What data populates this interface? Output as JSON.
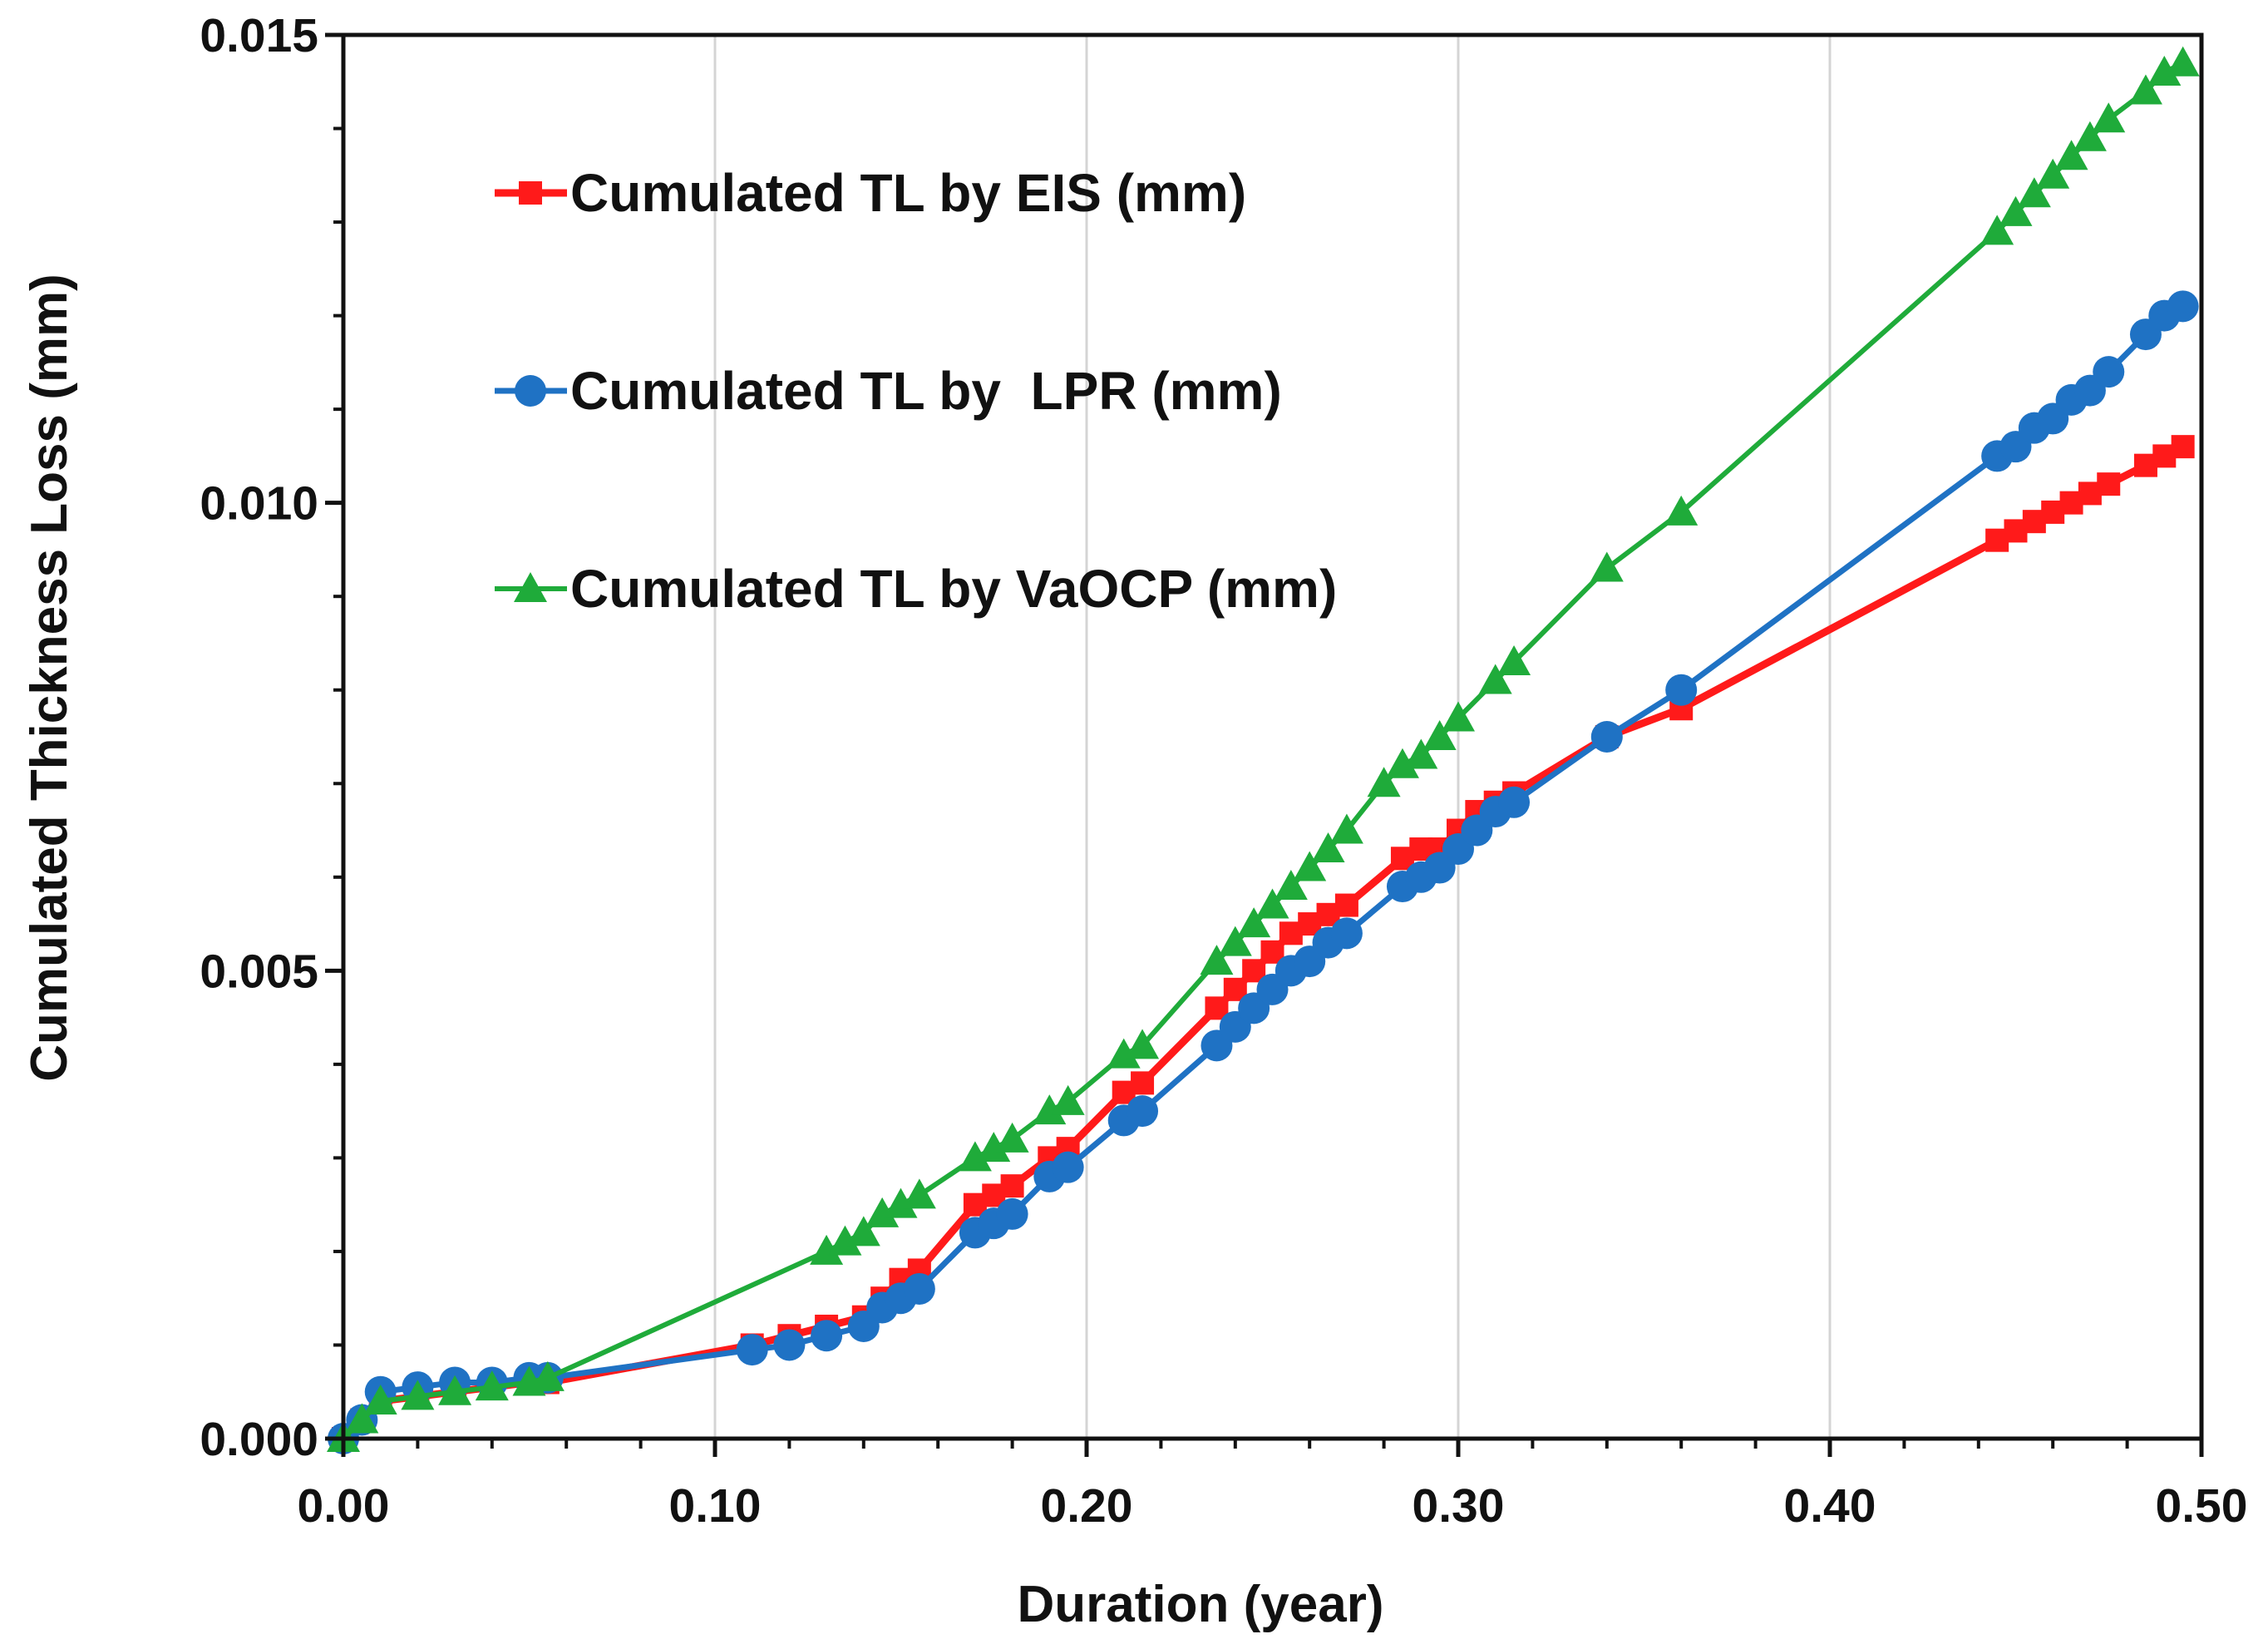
{
  "chart_data": {
    "type": "line",
    "title": "",
    "xlabel": "Duration (year)",
    "ylabel": "Cumulated Thickness Loss (mm)",
    "xlim": [
      0,
      0.5
    ],
    "ylim": [
      0,
      0.015
    ],
    "x_ticks": [
      0,
      0.1,
      0.2,
      0.3,
      0.4,
      0.5
    ],
    "x_tick_labels": [
      "0.00",
      "0.10",
      "0.20",
      "0.30",
      "0.40",
      "0.50"
    ],
    "y_ticks": [
      0,
      0.005,
      0.01,
      0.015
    ],
    "y_tick_labels": [
      "0.000",
      "0.005",
      "0.010",
      "0.015"
    ],
    "grid": "vertical",
    "legend_position": "top-left",
    "series": [
      {
        "name": "Cumulated TL by EIS (mm)",
        "color": "#ff1a1a",
        "marker": "square",
        "x": [
          0,
          0.005,
          0.01,
          0.02,
          0.03,
          0.04,
          0.05,
          0.055,
          0.11,
          0.12,
          0.13,
          0.14,
          0.145,
          0.15,
          0.155,
          0.17,
          0.175,
          0.18,
          0.19,
          0.195,
          0.21,
          0.215,
          0.235,
          0.24,
          0.245,
          0.25,
          0.255,
          0.26,
          0.265,
          0.27,
          0.285,
          0.29,
          0.295,
          0.3,
          0.305,
          0.31,
          0.315,
          0.34,
          0.36,
          0.445,
          0.45,
          0.455,
          0.46,
          0.465,
          0.47,
          0.475,
          0.485,
          0.49,
          0.495
        ],
        "y": [
          0,
          0.0002,
          0.0004,
          0.00045,
          0.0005,
          0.00055,
          0.0006,
          0.0006,
          0.001,
          0.0011,
          0.0012,
          0.0013,
          0.0015,
          0.0017,
          0.0018,
          0.0025,
          0.0026,
          0.0027,
          0.003,
          0.0031,
          0.0037,
          0.0038,
          0.0046,
          0.0048,
          0.005,
          0.0052,
          0.0054,
          0.0055,
          0.0056,
          0.0057,
          0.0062,
          0.0063,
          0.0063,
          0.0065,
          0.0067,
          0.0068,
          0.0069,
          0.0075,
          0.0078,
          0.0096,
          0.0097,
          0.0098,
          0.0099,
          0.01,
          0.0101,
          0.0102,
          0.0104,
          0.0105,
          0.0106
        ]
      },
      {
        "name": "Cumulated TL by  LPR (mm)",
        "color": "#1f72c4",
        "marker": "circle",
        "x": [
          0,
          0.005,
          0.01,
          0.02,
          0.03,
          0.04,
          0.05,
          0.055,
          0.11,
          0.12,
          0.13,
          0.14,
          0.145,
          0.15,
          0.155,
          0.17,
          0.175,
          0.18,
          0.19,
          0.195,
          0.21,
          0.215,
          0.235,
          0.24,
          0.245,
          0.25,
          0.255,
          0.26,
          0.265,
          0.27,
          0.285,
          0.29,
          0.295,
          0.3,
          0.305,
          0.31,
          0.315,
          0.34,
          0.36,
          0.445,
          0.45,
          0.455,
          0.46,
          0.465,
          0.47,
          0.475,
          0.485,
          0.49,
          0.495
        ],
        "y": [
          0,
          0.0002,
          0.0005,
          0.00055,
          0.0006,
          0.0006,
          0.00065,
          0.00065,
          0.00095,
          0.001,
          0.0011,
          0.0012,
          0.0014,
          0.0015,
          0.0016,
          0.0022,
          0.0023,
          0.0024,
          0.0028,
          0.0029,
          0.0034,
          0.0035,
          0.0042,
          0.0044,
          0.0046,
          0.0048,
          0.005,
          0.0051,
          0.0053,
          0.0054,
          0.0059,
          0.006,
          0.0061,
          0.0063,
          0.0065,
          0.0067,
          0.0068,
          0.0075,
          0.008,
          0.0105,
          0.0106,
          0.0108,
          0.0109,
          0.0111,
          0.0112,
          0.0114,
          0.0118,
          0.012,
          0.0121
        ]
      },
      {
        "name": "Cumulated TL by VaOCP (mm)",
        "color": "#1fab3a",
        "marker": "triangle",
        "x": [
          0,
          0.005,
          0.01,
          0.02,
          0.03,
          0.04,
          0.05,
          0.055,
          0.13,
          0.135,
          0.14,
          0.145,
          0.15,
          0.155,
          0.17,
          0.175,
          0.18,
          0.19,
          0.195,
          0.21,
          0.215,
          0.235,
          0.24,
          0.245,
          0.25,
          0.255,
          0.26,
          0.265,
          0.27,
          0.28,
          0.285,
          0.29,
          0.295,
          0.3,
          0.31,
          0.315,
          0.34,
          0.36,
          0.445,
          0.45,
          0.455,
          0.46,
          0.465,
          0.47,
          0.475,
          0.485,
          0.49,
          0.495
        ],
        "y": [
          0,
          0.0002,
          0.0004,
          0.00045,
          0.0005,
          0.00055,
          0.0006,
          0.00065,
          0.002,
          0.0021,
          0.0022,
          0.0024,
          0.0025,
          0.0026,
          0.003,
          0.0031,
          0.0032,
          0.0035,
          0.0036,
          0.0041,
          0.0042,
          0.0051,
          0.0053,
          0.0055,
          0.0057,
          0.0059,
          0.0061,
          0.0063,
          0.0065,
          0.007,
          0.0072,
          0.0073,
          0.0075,
          0.0077,
          0.0081,
          0.0083,
          0.0093,
          0.0099,
          0.0129,
          0.0131,
          0.0133,
          0.0135,
          0.0137,
          0.0139,
          0.0141,
          0.0144,
          0.0146,
          0.0147
        ]
      }
    ]
  }
}
